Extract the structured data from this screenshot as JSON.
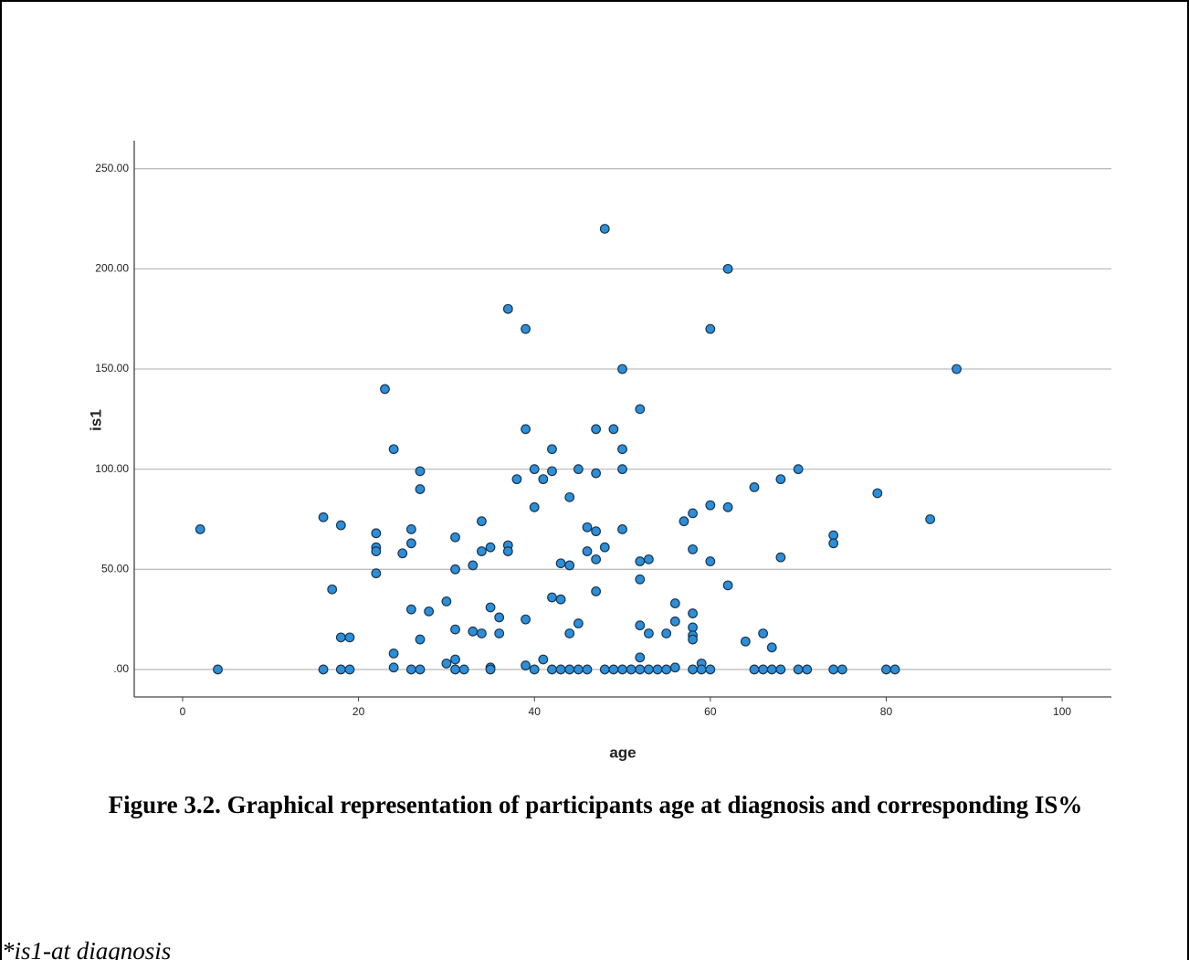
{
  "chart_data": {
    "type": "scatter",
    "xlabel": "age",
    "ylabel": "is1",
    "color": "#2b8fd9",
    "edgecolor": "#1c3550",
    "grid": true,
    "xlim": [
      -5.5,
      105.6
    ],
    "ylim": [
      -13.7,
      264
    ],
    "xticks": [
      0,
      20,
      40,
      60,
      80,
      100
    ],
    "yticks": [
      {
        "value": 0,
        "label": ".00"
      },
      {
        "value": 50,
        "label": "50.00"
      },
      {
        "value": 100,
        "label": "100.00"
      },
      {
        "value": 150,
        "label": "150.00"
      },
      {
        "value": 200,
        "label": "200.00"
      },
      {
        "value": 250,
        "label": "250.00"
      }
    ],
    "x": [
      2,
      4,
      16,
      16,
      17,
      18,
      18,
      18,
      19,
      19,
      22,
      22,
      22,
      22,
      23,
      24,
      24,
      24,
      25,
      26,
      26,
      26,
      26,
      27,
      27,
      27,
      27,
      28,
      30,
      30,
      31,
      31,
      31,
      31,
      31,
      32,
      33,
      33,
      34,
      34,
      34,
      35,
      35,
      35,
      35,
      36,
      36,
      37,
      37,
      37,
      38,
      39,
      39,
      39,
      39,
      40,
      40,
      40,
      41,
      41,
      42,
      42,
      42,
      42,
      43,
      43,
      43,
      44,
      44,
      44,
      44,
      45,
      45,
      45,
      46,
      46,
      46,
      47,
      47,
      47,
      47,
      47,
      48,
      48,
      48,
      49,
      49,
      50,
      50,
      50,
      50,
      50,
      51,
      52,
      52,
      52,
      52,
      52,
      52,
      53,
      53,
      53,
      54,
      55,
      55,
      56,
      56,
      56,
      57,
      58,
      58,
      58,
      58,
      58,
      58,
      58,
      59,
      59,
      60,
      60,
      60,
      60,
      62,
      62,
      62,
      64,
      65,
      65,
      66,
      66,
      67,
      67,
      68,
      68,
      68,
      70,
      70,
      71,
      74,
      74,
      74,
      75,
      80,
      81,
      79,
      85,
      88
    ],
    "y": [
      70,
      0,
      76,
      0,
      40,
      72,
      16,
      0,
      16,
      0,
      68,
      61,
      59,
      48,
      140,
      110,
      8,
      1,
      58,
      70,
      63,
      30,
      0,
      99,
      90,
      15,
      0,
      29,
      34,
      3,
      66,
      50,
      20,
      5,
      0,
      0,
      52,
      19,
      74,
      59,
      18,
      61,
      31,
      1,
      0,
      26,
      18,
      180,
      62,
      59,
      95,
      170,
      120,
      25,
      2,
      100,
      81,
      0,
      5,
      95,
      110,
      99,
      36,
      0,
      53,
      35,
      0,
      86,
      52,
      18,
      0,
      100,
      23,
      0,
      71,
      59,
      0,
      120,
      98,
      69,
      55,
      39,
      220,
      61,
      0,
      120,
      0,
      150,
      110,
      100,
      70,
      0,
      0,
      130,
      54,
      45,
      22,
      6,
      0,
      55,
      18,
      0,
      0,
      18,
      0,
      33,
      24,
      1,
      74,
      78,
      60,
      28,
      21,
      17,
      15,
      0,
      3,
      0,
      170,
      82,
      54,
      0,
      200,
      81,
      42,
      14,
      91,
      0,
      18,
      0,
      11,
      0,
      95,
      56,
      0,
      100,
      0,
      0,
      67,
      63,
      0,
      0,
      0,
      0,
      88,
      75,
      150
    ]
  },
  "caption": {
    "title": "Figure 3.2. Graphical representation of participants age at diagnosis and corresponding IS%",
    "note": "*is1-at diagnosis"
  }
}
